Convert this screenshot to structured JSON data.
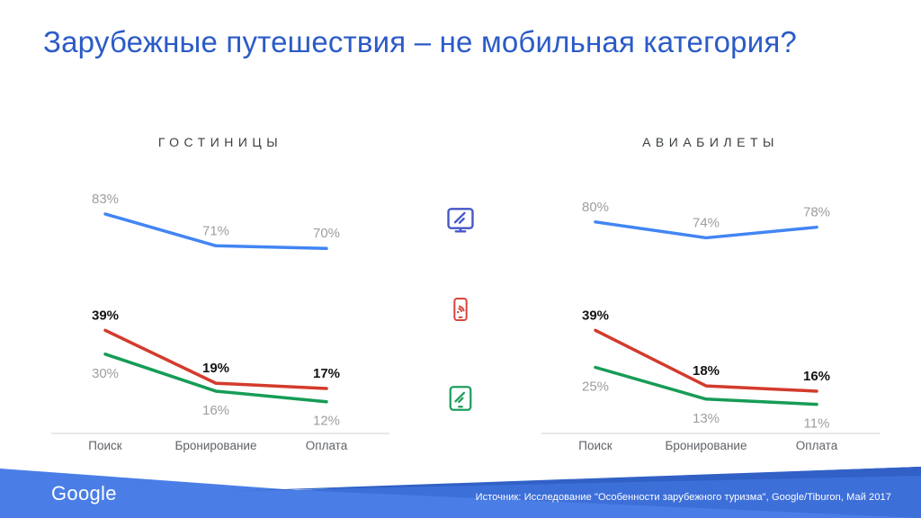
{
  "slide": {
    "title": "Зарубежные путешествия – не мобильная категория?",
    "logo": "Google",
    "source": "Источник: Исследование \"Особенности зарубежного туризма\", Google/Tiburon, Май 2017"
  },
  "colors": {
    "title_blue": "#2b5bc7",
    "line_desktop": "#4285f4",
    "line_mobile": "#d33b2c",
    "line_tablet": "#169c56",
    "label_gray": "#9e9e9e",
    "label_bold": "#141414",
    "footer_blue_light": "#4a7ee6",
    "footer_blue_medium": "#3d6fd9",
    "footer_blue_dark": "#3161c6"
  },
  "devices": [
    {
      "name": "desktop",
      "color": "#4456c7"
    },
    {
      "name": "mobile",
      "color": "#d6453c"
    },
    {
      "name": "tablet",
      "color": "#1f9e5e"
    }
  ],
  "chart_data": [
    {
      "type": "line",
      "title": "ГОСТИНИЦЫ",
      "categories": [
        "Поиск",
        "Бронирование",
        "Оплата"
      ],
      "series": [
        {
          "name": "desktop",
          "color": "#4285f4",
          "values": [
            83,
            71,
            70
          ],
          "label_style": "gray",
          "label_position": "above"
        },
        {
          "name": "mobile",
          "color": "#d33b2c",
          "values": [
            39,
            19,
            17
          ],
          "label_style": "bold",
          "label_position": "above"
        },
        {
          "name": "tablet",
          "color": "#169c56",
          "values": [
            30,
            16,
            12
          ],
          "label_style": "gray",
          "label_position": "below"
        }
      ],
      "ylim": [
        0,
        100
      ],
      "value_suffix": "%",
      "grid": false,
      "legend": "device icons between charts"
    },
    {
      "type": "line",
      "title": "АВИАБИЛЕТЫ",
      "categories": [
        "Поиск",
        "Бронирование",
        "Оплата"
      ],
      "series": [
        {
          "name": "desktop",
          "color": "#4285f4",
          "values": [
            80,
            74,
            78
          ],
          "label_style": "gray",
          "label_position": "above"
        },
        {
          "name": "mobile",
          "color": "#d33b2c",
          "values": [
            39,
            18,
            16
          ],
          "label_style": "bold",
          "label_position": "above"
        },
        {
          "name": "tablet",
          "color": "#169c56",
          "values": [
            25,
            13,
            11
          ],
          "label_style": "gray",
          "label_position": "below"
        }
      ],
      "ylim": [
        0,
        100
      ],
      "value_suffix": "%",
      "grid": false,
      "legend": "device icons between charts"
    }
  ]
}
